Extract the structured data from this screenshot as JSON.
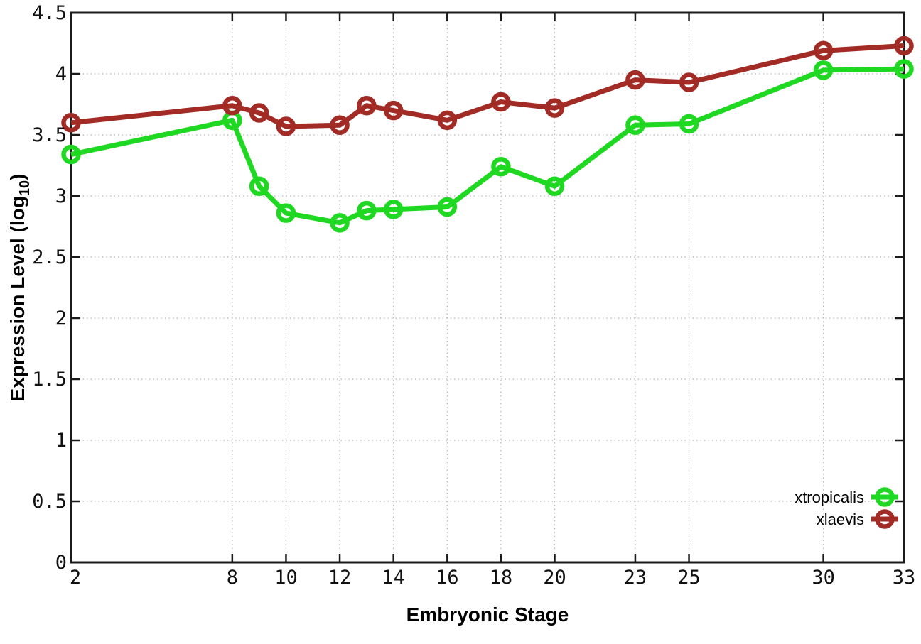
{
  "chart_data": {
    "type": "line",
    "title": "",
    "xlabel": "Embryonic Stage",
    "ylabel": "Expression Level (log10)",
    "ylabel_parts": {
      "prefix": "Expression Level (log",
      "sub": "10",
      "suffix": ")"
    },
    "x": [
      2,
      8,
      9,
      10,
      12,
      13,
      14,
      16,
      18,
      20,
      23,
      25,
      30,
      33
    ],
    "xticks": [
      2,
      8,
      10,
      12,
      14,
      16,
      18,
      20,
      23,
      25,
      30,
      33
    ],
    "yticks": [
      0,
      0.5,
      1,
      1.5,
      2,
      2.5,
      3,
      3.5,
      4,
      4.5
    ],
    "xlim": [
      2,
      33
    ],
    "ylim": [
      0,
      4.5
    ],
    "grid": true,
    "legend_position": "inside-bottom-right",
    "series": [
      {
        "name": "xtropicalis",
        "color": "#1ed821",
        "marker": "open-circle",
        "values": [
          3.34,
          3.62,
          3.08,
          2.86,
          2.78,
          2.88,
          2.89,
          2.91,
          3.24,
          3.08,
          3.58,
          3.59,
          4.03,
          4.04
        ]
      },
      {
        "name": "xlaevis",
        "color": "#a32b25",
        "marker": "open-circle",
        "values": [
          3.6,
          3.74,
          3.68,
          3.57,
          3.58,
          3.74,
          3.7,
          3.62,
          3.77,
          3.72,
          3.95,
          3.93,
          4.19,
          4.23
        ]
      }
    ],
    "colors": {
      "grid": "#b4b4b4",
      "axis": "#1a1a1a",
      "background": "#ffffff"
    }
  }
}
